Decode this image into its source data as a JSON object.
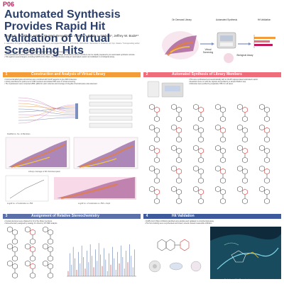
{
  "poster": {
    "id": "P06",
    "title": "Automated Synthesis Provides Rapid Hit Validation of Virtual Screening Hits",
    "authors": "Angus E. McMillan¹, Wilson W. Wu², Benedikt M. Wanner¹, Paula L. Nichols¹, Jeffrey W. Bode¹*",
    "affiliations": "1. Laboratory of Organic Chemistry, Department of Chemistry and Applied Biosciences, ETH Zürich, 8093 Zürich, Switzerland. 2. Enamine Ltd, Kyiv, Ukraine. *Corresponding author.",
    "bullets": [
      "Synthesis is the rate-determining step in the Design, Make, Test discovery cycle.",
      "A computational workflow was used to construct and screen an ultra-large virtual library whose members can be rapidly prepared by an automated synthesis console.",
      "Hits against several targets, including SARS-CoV-2 Mpro, were synthesised using an automated reactor and validated in a biological assay."
    ]
  },
  "header_graphic": {
    "on_demand_library": "On Demand Library",
    "automated_synthesis": "Automated Synthesis",
    "hit_validation": "Hit Validation",
    "virtual_screening": "Virtual Screening",
    "biological_assay": "Biological Assay"
  },
  "sections": {
    "s1": {
      "num": "1",
      "title": "Construction and Analysis of Virtual Library",
      "bullets": [
        "Commercial aldehydes and amines were combined with SnAP reagents to give 62M molecules.",
        "Library was filtered to yield a set of 3.6M members and docked 56% were in virtual screening.",
        "The 3-parameters were computed (PMI, QED) for each molecule and coverage of drug-like chemical space was assessed."
      ],
      "fig1_caption": "Scaffold vs. No. of Members",
      "fig2_caption": "Library coverage of 3D chemical space",
      "fig3_caption": "Log10 no. of molecules vs. PMI",
      "fig4_caption": "Log10 no. of molecules vs. PMI + Fsp3"
    },
    "s2": {
      "num": "2",
      "title": "Automated Synthesis of Library Members",
      "bullets": [
        "Hits were synthesised semi-automatically with an iSnAP capsule-based automated reactor.",
        "Reactions were run with the capsule and purified by a simple filtration step.",
        "Molecules were purified by preparative HPLC in all cases."
      ]
    },
    "s3": {
      "num": "3",
      "title": "Assignment of Relative Stereochemistry",
      "bullets": [
        "Crystal structures were obtained for 10 of the library members.",
        "Stereochemistry assigned by analogy for others by 1H NMR analysis."
      ]
    },
    "s4": {
      "num": "4",
      "title": "Hit Validation",
      "bullets": [
        "SARS-CoV-2 Mpro inhibitors identified using docking and validated in a biochemical assay.",
        "Hits from docking were resynthesised and tested; several showed measurable inhibition."
      ],
      "fig_caption": "Docked pose of hit in Mpro active site"
    }
  },
  "colors": {
    "title": "#2a3f6b",
    "poster_id": "#c2185b",
    "section1": "#f39c3a",
    "section2": "#ef6c7a",
    "section3": "#5b6fa8",
    "section4": "#3d5a9c"
  }
}
